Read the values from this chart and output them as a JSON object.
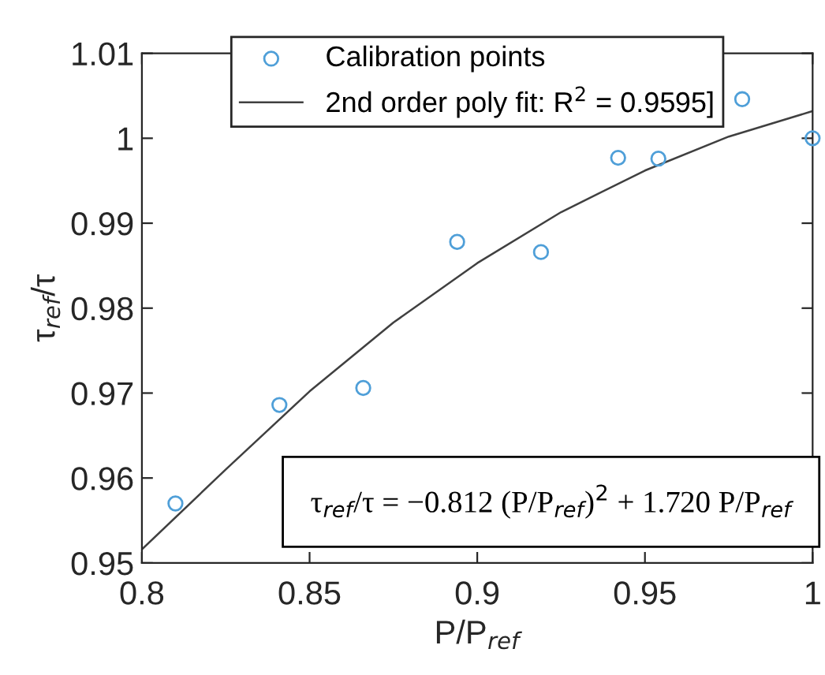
{
  "chart_data": {
    "type": "scatter",
    "xlabel": "P/P$_{ref}$",
    "ylabel": "τ$_{ref}$/τ",
    "series": [
      {
        "name": "Calibration points",
        "color": "#4f9fd8",
        "marker": "circle",
        "x": [
          0.81,
          0.841,
          0.866,
          0.894,
          0.919,
          0.942,
          0.954,
          0.979,
          1.0
        ],
        "values": [
          0.957,
          0.9686,
          0.9706,
          0.9878,
          0.9866,
          0.9977,
          0.9976,
          1.0046,
          1.0
        ]
      },
      {
        "name": "2nd order poly fit: R$^{2}$ = 0.9595]",
        "type": "line",
        "color": "#404040",
        "marker": "none",
        "line_style": "solid",
        "x": [
          0.8,
          0.825,
          0.85,
          0.875,
          0.9,
          0.925,
          0.95,
          0.975,
          1.0
        ],
        "values": [
          0.9516,
          0.961,
          0.9702,
          0.9783,
          0.9853,
          0.9913,
          0.9962,
          1.0002,
          1.0032
        ]
      }
    ],
    "xlim": [
      0.8,
      1.0
    ],
    "xticks": [
      0.8,
      0.85,
      0.9,
      0.95,
      {
        "value": 1.0,
        "label": "1"
      }
    ],
    "ylim": [
      0.95,
      1.01
    ],
    "yticks": [
      0.95,
      0.96,
      0.97,
      0.98,
      0.99,
      {
        "value": 1.0,
        "label": "1"
      },
      1.01
    ],
    "annotations": [
      "τ$_{ref}$/τ = −0.812 (P/P$_{ref}$)$^{2}$ + 1.720 P/P$_{ref}$"
    ],
    "legend": "top",
    "grid": false
  }
}
